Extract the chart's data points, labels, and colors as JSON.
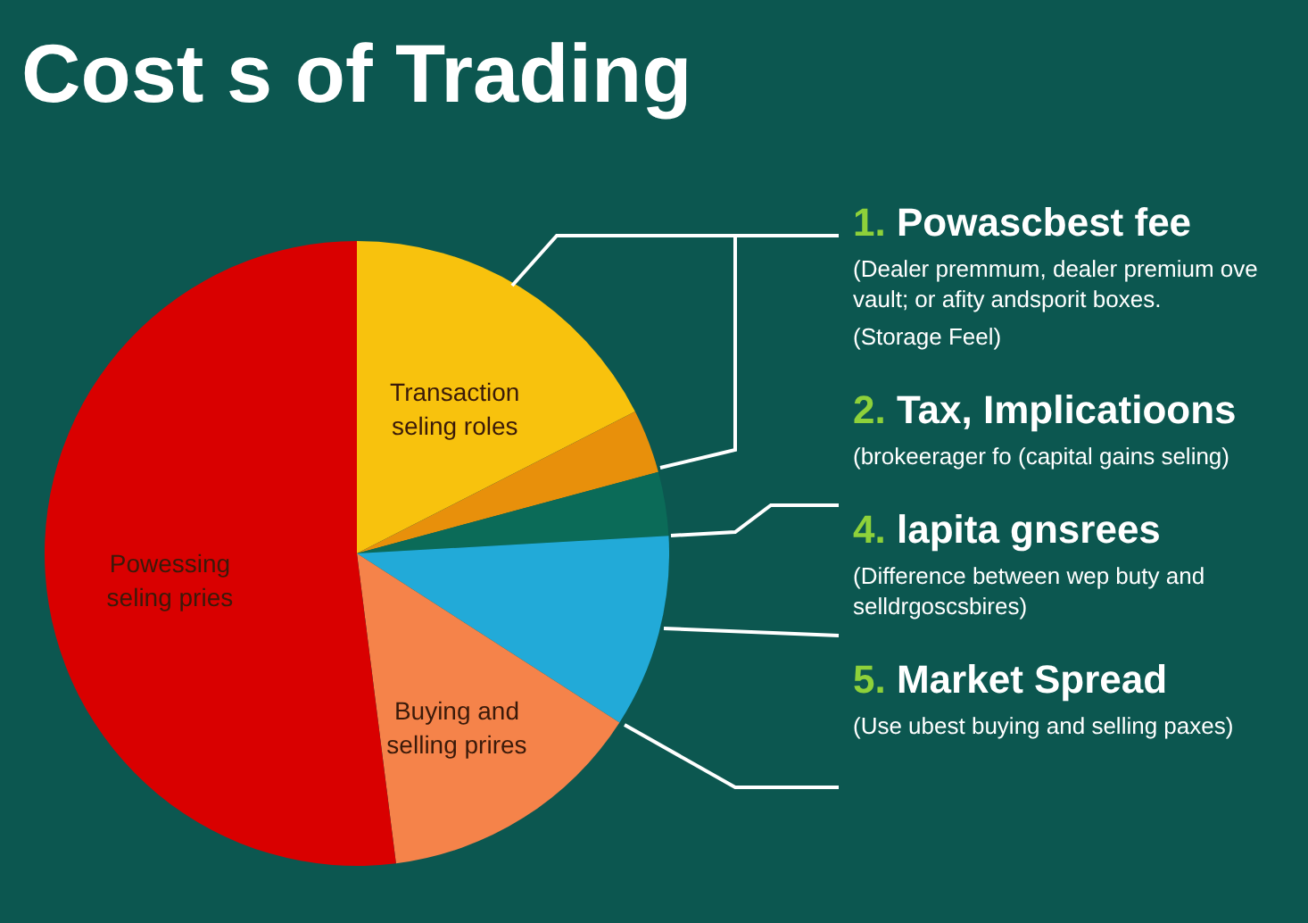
{
  "chart_data": {
    "type": "pie",
    "title": "Cost s of Trading",
    "categories": [
      "Transaction seling roles",
      null,
      null,
      null,
      "Buying and selling prires",
      "Powessing seling pries"
    ],
    "values": [
      17.5,
      3.3,
      3.3,
      10,
      13.9,
      52
    ],
    "colors": [
      "#f8c20d",
      "#e8900b",
      "#0b6b58",
      "#22aad8",
      "#f5834a",
      "#d90000"
    ],
    "legend": false,
    "annotations": [
      "1. Powascbest fee",
      "(Dealer premmum, dealer premium ove vault; or afity andsporit boxes.",
      "(Storage Feel)",
      "2. Tax, Implicatioons",
      "(brokeerager fo (capital gains seling)",
      "4. lapita gnsrees",
      "(Difference between wep buty and selldrgoscsbires)",
      "5. Market Spread",
      "(Use ubest buying and selling paxes)"
    ]
  }
}
